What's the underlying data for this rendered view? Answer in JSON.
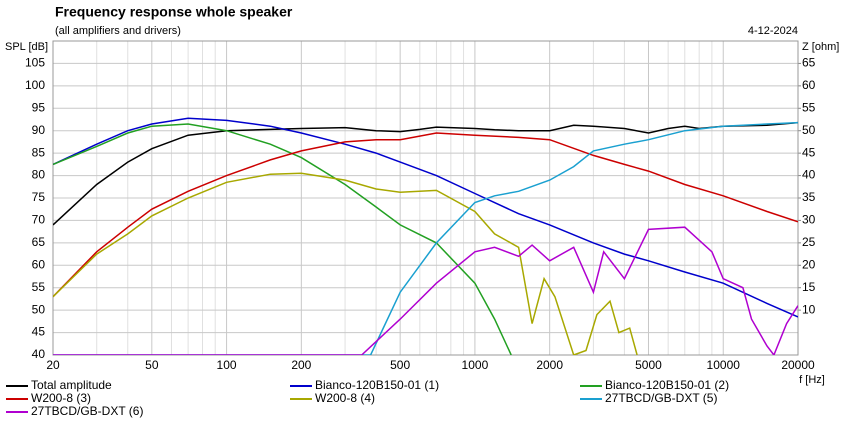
{
  "chart_data": {
    "type": "line",
    "title": "Frequency response whole speaker",
    "subtitle": "(all amplifiers and drivers)",
    "date": "4-12-2024",
    "xlabel": "f [Hz]",
    "ylabel": "SPL [dB]",
    "y2label": "Z [ohm]",
    "xscale": "log",
    "grid": true,
    "legend": "bottom",
    "xlim": [
      20,
      20000
    ],
    "xticks": [
      20,
      50,
      100,
      200,
      500,
      1000,
      2000,
      5000,
      10000,
      20000
    ],
    "xminorticks": [
      30,
      40,
      60,
      70,
      80,
      90,
      300,
      400,
      600,
      700,
      800,
      900,
      3000,
      4000,
      6000,
      7000,
      8000,
      9000
    ],
    "ylim": [
      40,
      110
    ],
    "yticks": [
      40,
      45,
      50,
      55,
      60,
      65,
      70,
      75,
      80,
      85,
      90,
      95,
      100,
      105
    ],
    "y2lim": [
      0,
      70
    ],
    "y2ticks": [
      10,
      15,
      20,
      25,
      30,
      35,
      40,
      45,
      50,
      55,
      60,
      65
    ],
    "series": [
      {
        "name": "Total amplitude",
        "color": "#000000",
        "x": [
          20,
          30,
          40,
          50,
          70,
          100,
          150,
          200,
          300,
          400,
          500,
          600,
          700,
          1000,
          1200,
          1500,
          2000,
          2500,
          3000,
          4000,
          5000,
          6000,
          7000,
          8000,
          10000,
          15000,
          20000
        ],
        "values": [
          69,
          78,
          83,
          86,
          89,
          90,
          90.3,
          90.5,
          90.7,
          90,
          89.8,
          90.3,
          90.8,
          90.5,
          90.2,
          90,
          90,
          91.2,
          91,
          90.5,
          89.5,
          90.5,
          91,
          90.5,
          91,
          91.2,
          91.8
        ]
      },
      {
        "name": "Bianco-120B150-01 (1)",
        "color": "#0000cc",
        "x": [
          20,
          30,
          40,
          50,
          70,
          100,
          150,
          200,
          300,
          400,
          500,
          700,
          1000,
          1500,
          2000,
          3000,
          4000,
          5000,
          7000,
          10000,
          15000,
          20000
        ],
        "values": [
          82.5,
          87,
          90,
          91.5,
          92.8,
          92.3,
          91,
          89.5,
          87,
          85,
          83,
          80,
          76,
          71.5,
          69,
          65,
          62.5,
          61,
          58.5,
          56,
          51.5,
          48.5
        ]
      },
      {
        "name": "Bianco-120B150-01 (2)",
        "color": "#22a022",
        "x": [
          20,
          30,
          40,
          50,
          70,
          100,
          150,
          200,
          300,
          400,
          500,
          700,
          1000,
          1200,
          1400
        ],
        "values": [
          82.5,
          86.5,
          89.5,
          91,
          91.5,
          90,
          87,
          84,
          78,
          73,
          69,
          65,
          56,
          48,
          40
        ]
      },
      {
        "name": "W200-8 (3)",
        "color": "#cc0000",
        "x": [
          20,
          30,
          40,
          50,
          70,
          100,
          150,
          200,
          300,
          400,
          500,
          700,
          1000,
          1500,
          2000,
          3000,
          4000,
          5000,
          7000,
          10000,
          15000,
          20000
        ],
        "values": [
          53,
          63,
          68.5,
          72.5,
          76.5,
          80,
          83.5,
          85.5,
          87.5,
          88,
          88,
          89.5,
          89,
          88.5,
          88,
          84.5,
          82.5,
          81,
          78,
          75.5,
          72,
          69.7
        ]
      },
      {
        "name": "W200-8 (4)",
        "color": "#a8a800",
        "x": [
          20,
          30,
          40,
          50,
          70,
          100,
          150,
          200,
          300,
          400,
          500,
          700,
          1000,
          1200,
          1500,
          1700,
          1900,
          2100,
          2500,
          2800,
          3100,
          3500,
          3800,
          4200,
          4500
        ],
        "values": [
          53,
          62.5,
          67,
          71,
          75,
          78.5,
          80.3,
          80.5,
          79,
          77,
          76.3,
          76.7,
          72,
          67,
          64,
          47,
          57,
          53,
          40,
          41,
          49,
          52,
          45,
          46,
          40
        ]
      },
      {
        "name": "27TBCD/GB-DXT (5)",
        "color": "#1aa0d0",
        "x": [
          20,
          380,
          500,
          700,
          1000,
          1200,
          1500,
          2000,
          2500,
          3000,
          4000,
          5000,
          7000,
          10000,
          15000,
          20000
        ],
        "values": [
          40,
          40,
          54,
          65,
          74,
          75.5,
          76.5,
          79,
          82,
          85.5,
          87,
          88,
          90,
          91,
          91.5,
          91.8
        ]
      },
      {
        "name": "27TBCD/GB-DXT (6)",
        "color": "#b000d0",
        "x": [
          20,
          350,
          500,
          700,
          1000,
          1200,
          1500,
          1700,
          2000,
          2500,
          3000,
          3300,
          4000,
          5000,
          7000,
          9000,
          10000,
          12000,
          13000,
          15000,
          16000,
          18000,
          20000
        ],
        "values": [
          40,
          40,
          48,
          56,
          63,
          64,
          62,
          64.5,
          61,
          64,
          54,
          63,
          57,
          68,
          68.5,
          63,
          57,
          55,
          48,
          42,
          40,
          47,
          51
        ]
      }
    ]
  }
}
